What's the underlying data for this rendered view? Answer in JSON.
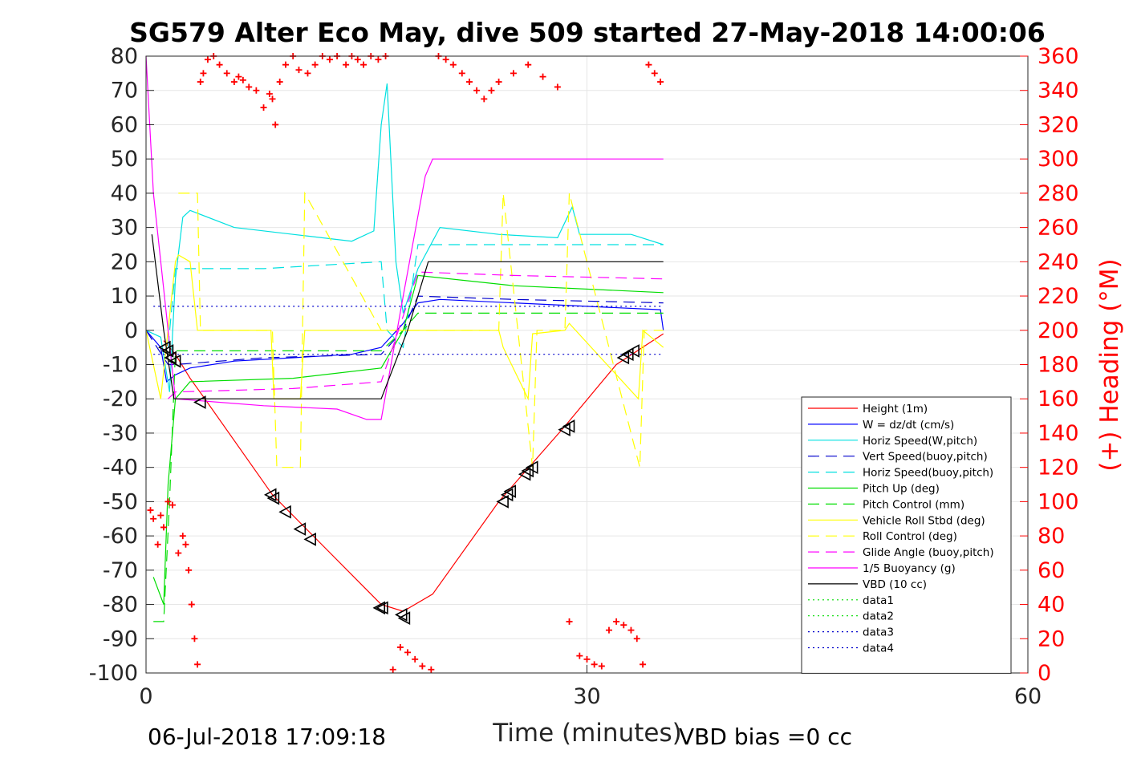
{
  "chart_data": {
    "type": "line",
    "title": "SG579 Alter Eco May, dive 509 started 27-May-2018 14:00:06",
    "xlabel": "Time (minutes)",
    "ylabel": "",
    "ylabel_right": "(+) Heading (°M)",
    "xlim": [
      0,
      60
    ],
    "ylim": [
      -100,
      80
    ],
    "ylim_right": [
      0,
      360
    ],
    "x_ticks": [
      "0",
      "30",
      "60"
    ],
    "y_ticks": [
      "80",
      "70",
      "60",
      "50",
      "40",
      "30",
      "20",
      "10",
      "0",
      "-10",
      "-20",
      "-30",
      "-40",
      "-50",
      "-60",
      "-70",
      "-80",
      "-90",
      "-100"
    ],
    "y_ticks_right": [
      "360",
      "340",
      "320",
      "300",
      "280",
      "260",
      "240",
      "220",
      "200",
      "180",
      "160",
      "140",
      "120",
      "100",
      "80",
      "60",
      "40",
      "20",
      "0"
    ],
    "grid": true,
    "legend_position": "bottom-right",
    "footer_left": "06-Jul-2018 17:09:18",
    "footer_right": "VBD bias =0 cc",
    "series": [
      {
        "name": "Height (1m)",
        "color": "#ff0000",
        "dash": "solid",
        "x": [
          1.2,
          2,
          3,
          4,
          8.6,
          16,
          17.5,
          19.5,
          24,
          28.5,
          32,
          35.2
        ],
        "y": [
          -3,
          -7,
          -14,
          -20,
          -48,
          -80,
          -82,
          -77,
          -50,
          -28,
          -10,
          -1
        ]
      },
      {
        "name": "W = dz/dt (cm/s)",
        "color": "#0000ff",
        "dash": "solid",
        "x": [
          0,
          1,
          1.4,
          2,
          3,
          6,
          10,
          14,
          16,
          17.5,
          18.5,
          20,
          25,
          30,
          35,
          35.2
        ],
        "y": [
          0,
          -5,
          -15,
          -13,
          -11,
          -9,
          -8,
          -7,
          -5,
          2,
          8,
          9,
          8,
          7,
          6,
          0
        ]
      },
      {
        "name": "Horiz Speed(W,pitch)",
        "color": "#00e0e0",
        "dash": "solid",
        "x": [
          0,
          1,
          1.6,
          2,
          2.5,
          3,
          6,
          10,
          14,
          15.5,
          16,
          16.4,
          17,
          17.5,
          18.5,
          20,
          24,
          28,
          29,
          29.5,
          33,
          35.2
        ],
        "y": [
          0,
          -2,
          -18,
          15,
          33,
          35,
          30,
          28,
          26,
          29,
          60,
          72,
          20,
          5,
          18,
          30,
          28,
          27,
          36,
          28,
          28,
          25
        ]
      },
      {
        "name": "Vert Speed(buoy,pitch)",
        "color": "#0000cc",
        "dash": "dashed",
        "x": [
          0,
          1.5,
          2,
          8,
          16,
          17.5,
          18.5,
          25,
          35.2
        ],
        "y": [
          0,
          -10,
          -10,
          -8,
          -7,
          0,
          10,
          9,
          8
        ]
      },
      {
        "name": "Horiz Speed(buoy,pitch)",
        "color": "#00e0e0",
        "dash": "dashed",
        "x": [
          1.5,
          2,
          8,
          16,
          16.4,
          17.5,
          18.5,
          25,
          35.2
        ],
        "y": [
          -5,
          18,
          18,
          20,
          0,
          -5,
          25,
          25,
          25
        ]
      },
      {
        "name": "Pitch Up (deg)",
        "color": "#00dd00",
        "dash": "solid",
        "x": [
          0.5,
          1.2,
          1.5,
          2,
          3,
          10,
          16,
          17.5,
          18.5,
          25,
          35.2
        ],
        "y": [
          -72,
          -80,
          -45,
          -20,
          -15,
          -14,
          -11,
          0,
          16,
          13,
          11
        ]
      },
      {
        "name": "Pitch Control (mm)",
        "color": "#00dd00",
        "dash": "dashed",
        "x": [
          0.5,
          1.2,
          1.6,
          2,
          16,
          17.5,
          18.5,
          35.2
        ],
        "y": [
          -85,
          -85,
          -50,
          -6,
          -6,
          0,
          5,
          5
        ]
      },
      {
        "name": "Vehicle Roll Stbd (deg)",
        "color": "#ffff00",
        "dash": "solid",
        "x": [
          0,
          1,
          2,
          2.2,
          3,
          3.5,
          8.5,
          8.7,
          10.5,
          10.8,
          16,
          18,
          24,
          24.3,
          26,
          26.3,
          28.5,
          28.8,
          33.5,
          33.8,
          35.2
        ],
        "y": [
          0,
          -20,
          20,
          22,
          20,
          0,
          0,
          -20,
          -20,
          0,
          0,
          0,
          0,
          -5,
          -20,
          -1,
          0,
          2,
          -20,
          0,
          -5
        ]
      },
      {
        "name": "Roll Control (deg)",
        "color": "#ffff00",
        "dash": "dashed",
        "x": [
          2.2,
          3.5,
          3.7,
          8.6,
          8.9,
          10.5,
          10.8,
          16,
          24,
          24.3,
          26.3,
          26.6,
          28.5,
          28.8,
          33.6,
          33.9,
          35.2
        ],
        "y": [
          40,
          40,
          0,
          0,
          -40,
          -40,
          40,
          0,
          0,
          40,
          -40,
          0,
          0,
          40,
          -40,
          0,
          0
        ]
      },
      {
        "name": "Glide Angle (buoy,pitch)",
        "color": "#ff00ff",
        "dash": "dashed",
        "x": [
          1.5,
          2,
          10,
          16,
          18.5,
          25,
          35.2
        ],
        "y": [
          -20,
          -18,
          -17,
          -15,
          17,
          16,
          15
        ]
      },
      {
        "name": "1/5 Buoyancy (g)",
        "color": "#ff00ff",
        "dash": "solid",
        "x": [
          0,
          0.5,
          1.5,
          2,
          8,
          13,
          15,
          16,
          17.5,
          19,
          19.5,
          20,
          35.2
        ],
        "y": [
          80,
          40,
          0,
          -20,
          -22,
          -23,
          -26,
          -26,
          10,
          45,
          50,
          50,
          50
        ]
      },
      {
        "name": "VBD (10 cc)",
        "color": "#000000",
        "dash": "solid",
        "x": [
          0.4,
          1.2,
          1.9,
          16,
          17.8,
          19.2,
          35.2
        ],
        "y": [
          28,
          0,
          -20,
          -20,
          0,
          20,
          20
        ]
      },
      {
        "name": "data1",
        "color": "#00dd00",
        "dash": "dotted",
        "x": [],
        "y": []
      },
      {
        "name": "data2",
        "color": "#00dd00",
        "dash": "dotted",
        "x": [],
        "y": []
      },
      {
        "name": "data3",
        "color": "#0000cc",
        "dash": "dotted",
        "x": [
          0.5,
          35.2
        ],
        "y": [
          7,
          7
        ]
      },
      {
        "name": "data4",
        "color": "#0000cc",
        "dash": "dotted",
        "x": [
          0.5,
          35.2
        ],
        "y": [
          -7,
          -7
        ]
      }
    ],
    "heading_points": {
      "color": "#ff0000",
      "axis": "right",
      "x": [
        0.3,
        0.5,
        0.8,
        1.0,
        1.2,
        1.5,
        1.8,
        2.2,
        2.5,
        2.7,
        2.9,
        3.1,
        3.3,
        3.5,
        3.7,
        3.9,
        4.2,
        4.6,
        5.0,
        5.5,
        6.0,
        6.3,
        6.6,
        7.0,
        7.5,
        8.0,
        8.4,
        8.6,
        8.8,
        9.1,
        9.5,
        10.0,
        10.4,
        11.0,
        11.5,
        12.0,
        12.5,
        13.0,
        13.6,
        14.0,
        14.4,
        14.8,
        15.3,
        15.8,
        16.3,
        16.8,
        17.3,
        17.8,
        18.3,
        18.8,
        19.4,
        19.9,
        20.4,
        20.9,
        21.5,
        22.0,
        22.5,
        23.0,
        23.5,
        24.0,
        25.0,
        26.0,
        27.0,
        28.0,
        28.8,
        29.5,
        30.0,
        30.5,
        31.0,
        31.5,
        32.0,
        32.5,
        33.0,
        33.4,
        33.8,
        34.2,
        34.6,
        35.0
      ],
      "y": [
        95,
        90,
        75,
        92,
        85,
        100,
        98,
        70,
        80,
        75,
        60,
        40,
        20,
        5,
        345,
        350,
        358,
        360,
        355,
        350,
        345,
        348,
        346,
        342,
        340,
        330,
        338,
        335,
        320,
        345,
        355,
        360,
        352,
        350,
        355,
        360,
        358,
        360,
        355,
        360,
        358,
        355,
        360,
        358,
        360,
        2,
        15,
        12,
        8,
        4,
        2,
        360,
        358,
        355,
        350,
        345,
        340,
        335,
        340,
        345,
        350,
        355,
        348,
        342,
        30,
        10,
        8,
        5,
        4,
        25,
        30,
        28,
        25,
        20,
        5,
        355,
        350,
        345
      ]
    },
    "triangle_markers": {
      "color": "#000000",
      "x": [
        1.3,
        1.5,
        1.7,
        2.0,
        3.7,
        8.5,
        8.7,
        9.5,
        10.5,
        11.2,
        15.9,
        16.1,
        17.4,
        17.6,
        24.3,
        24.6,
        24.8,
        25.8,
        26.0,
        26.3,
        28.5,
        28.8,
        32.5,
        32.8,
        33.2
      ],
      "y": [
        -5,
        -6,
        -8,
        -9,
        -21,
        -48,
        -49,
        -53,
        -58,
        -61,
        -81,
        -81,
        -83,
        -84,
        -50,
        -48,
        -47,
        -42,
        -41,
        -40,
        -29,
        -28,
        -8,
        -7,
        -6
      ]
    }
  }
}
